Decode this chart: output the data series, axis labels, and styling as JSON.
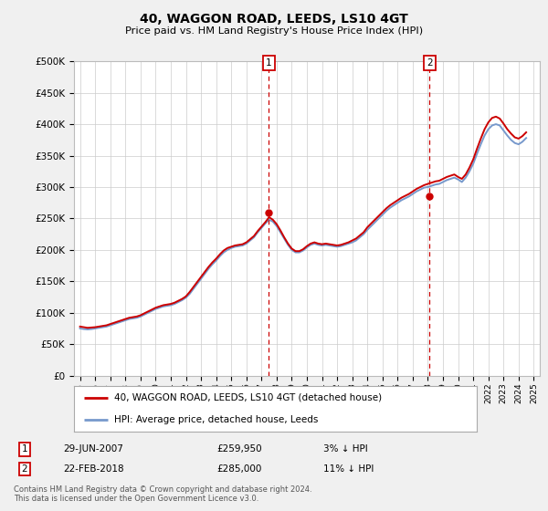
{
  "title": "40, WAGGON ROAD, LEEDS, LS10 4GT",
  "subtitle": "Price paid vs. HM Land Registry's House Price Index (HPI)",
  "ylabel_ticks": [
    "£0",
    "£50K",
    "£100K",
    "£150K",
    "£200K",
    "£250K",
    "£300K",
    "£350K",
    "£400K",
    "£450K",
    "£500K"
  ],
  "ytick_vals": [
    0,
    50000,
    100000,
    150000,
    200000,
    250000,
    300000,
    350000,
    400000,
    450000,
    500000
  ],
  "xlim_start": 1994.6,
  "xlim_end": 2025.4,
  "ylim": [
    0,
    500000
  ],
  "hpi_color": "#7799cc",
  "price_color": "#cc0000",
  "marker1_year": 2007.49,
  "marker2_year": 2018.12,
  "marker1_price": 259950,
  "marker2_price": 285000,
  "annotation1_label": "1",
  "annotation2_label": "2",
  "legend_label1": "40, WAGGON ROAD, LEEDS, LS10 4GT (detached house)",
  "legend_label2": "HPI: Average price, detached house, Leeds",
  "table_row1": [
    "1",
    "29-JUN-2007",
    "£259,950",
    "3% ↓ HPI"
  ],
  "table_row2": [
    "2",
    "22-FEB-2018",
    "£285,000",
    "11% ↓ HPI"
  ],
  "footer": "Contains HM Land Registry data © Crown copyright and database right 2024.\nThis data is licensed under the Open Government Licence v3.0.",
  "bg_color": "#f0f0f0",
  "plot_bg": "#ffffff",
  "hpi_data": {
    "years": [
      1995.0,
      1995.25,
      1995.5,
      1995.75,
      1996.0,
      1996.25,
      1996.5,
      1996.75,
      1997.0,
      1997.25,
      1997.5,
      1997.75,
      1998.0,
      1998.25,
      1998.5,
      1998.75,
      1999.0,
      1999.25,
      1999.5,
      1999.75,
      2000.0,
      2000.25,
      2000.5,
      2000.75,
      2001.0,
      2001.25,
      2001.5,
      2001.75,
      2002.0,
      2002.25,
      2002.5,
      2002.75,
      2003.0,
      2003.25,
      2003.5,
      2003.75,
      2004.0,
      2004.25,
      2004.5,
      2004.75,
      2005.0,
      2005.25,
      2005.5,
      2005.75,
      2006.0,
      2006.25,
      2006.5,
      2006.75,
      2007.0,
      2007.25,
      2007.5,
      2007.75,
      2008.0,
      2008.25,
      2008.5,
      2008.75,
      2009.0,
      2009.25,
      2009.5,
      2009.75,
      2010.0,
      2010.25,
      2010.5,
      2010.75,
      2011.0,
      2011.25,
      2011.5,
      2011.75,
      2012.0,
      2012.25,
      2012.5,
      2012.75,
      2013.0,
      2013.25,
      2013.5,
      2013.75,
      2014.0,
      2014.25,
      2014.5,
      2014.75,
      2015.0,
      2015.25,
      2015.5,
      2015.75,
      2016.0,
      2016.25,
      2016.5,
      2016.75,
      2017.0,
      2017.25,
      2017.5,
      2017.75,
      2018.0,
      2018.25,
      2018.5,
      2018.75,
      2019.0,
      2019.25,
      2019.5,
      2019.75,
      2020.0,
      2020.25,
      2020.5,
      2020.75,
      2021.0,
      2021.25,
      2021.5,
      2021.75,
      2022.0,
      2022.25,
      2022.5,
      2022.75,
      2023.0,
      2023.25,
      2023.5,
      2023.75,
      2024.0,
      2024.25,
      2024.5
    ],
    "values": [
      75000,
      74000,
      73500,
      74000,
      75000,
      76000,
      77000,
      78000,
      80000,
      82000,
      84000,
      86000,
      88000,
      90000,
      91000,
      92000,
      94000,
      97000,
      100000,
      103000,
      106000,
      108000,
      110000,
      111000,
      112000,
      114000,
      117000,
      120000,
      124000,
      130000,
      138000,
      146000,
      154000,
      162000,
      170000,
      177000,
      183000,
      190000,
      196000,
      200000,
      203000,
      205000,
      206000,
      207000,
      210000,
      215000,
      220000,
      228000,
      235000,
      242000,
      248000,
      245000,
      238000,
      228000,
      218000,
      208000,
      200000,
      196000,
      196000,
      199000,
      204000,
      208000,
      210000,
      208000,
      207000,
      208000,
      207000,
      206000,
      205000,
      206000,
      208000,
      210000,
      212000,
      215000,
      220000,
      225000,
      232000,
      238000,
      244000,
      250000,
      256000,
      262000,
      267000,
      271000,
      275000,
      279000,
      282000,
      285000,
      289000,
      293000,
      296000,
      299000,
      300000,
      302000,
      304000,
      305000,
      308000,
      311000,
      313000,
      315000,
      312000,
      308000,
      315000,
      325000,
      337000,
      353000,
      368000,
      382000,
      392000,
      398000,
      400000,
      398000,
      390000,
      382000,
      375000,
      370000,
      368000,
      372000,
      378000
    ]
  },
  "price_data": {
    "years": [
      1995.0,
      1995.25,
      1995.5,
      1995.75,
      1996.0,
      1996.25,
      1996.5,
      1996.75,
      1997.0,
      1997.25,
      1997.5,
      1997.75,
      1998.0,
      1998.25,
      1998.5,
      1998.75,
      1999.0,
      1999.25,
      1999.5,
      1999.75,
      2000.0,
      2000.25,
      2000.5,
      2000.75,
      2001.0,
      2001.25,
      2001.5,
      2001.75,
      2002.0,
      2002.25,
      2002.5,
      2002.75,
      2003.0,
      2003.25,
      2003.5,
      2003.75,
      2004.0,
      2004.25,
      2004.5,
      2004.75,
      2005.0,
      2005.25,
      2005.5,
      2005.75,
      2006.0,
      2006.25,
      2006.5,
      2006.75,
      2007.0,
      2007.25,
      2007.5,
      2007.75,
      2008.0,
      2008.25,
      2008.5,
      2008.75,
      2009.0,
      2009.25,
      2009.5,
      2009.75,
      2010.0,
      2010.25,
      2010.5,
      2010.75,
      2011.0,
      2011.25,
      2011.5,
      2011.75,
      2012.0,
      2012.25,
      2012.5,
      2012.75,
      2013.0,
      2013.25,
      2013.5,
      2013.75,
      2014.0,
      2014.25,
      2014.5,
      2014.75,
      2015.0,
      2015.25,
      2015.5,
      2015.75,
      2016.0,
      2016.25,
      2016.5,
      2016.75,
      2017.0,
      2017.25,
      2017.5,
      2017.75,
      2018.0,
      2018.25,
      2018.5,
      2018.75,
      2019.0,
      2019.25,
      2019.5,
      2019.75,
      2020.0,
      2020.25,
      2020.5,
      2020.75,
      2021.0,
      2021.25,
      2021.5,
      2021.75,
      2022.0,
      2022.25,
      2022.5,
      2022.75,
      2023.0,
      2023.25,
      2023.5,
      2023.75,
      2024.0,
      2024.25,
      2024.5
    ],
    "values": [
      78000,
      77000,
      76000,
      76500,
      77000,
      78000,
      79000,
      80000,
      82000,
      84000,
      86000,
      88000,
      90000,
      92000,
      93000,
      94000,
      96000,
      99000,
      102000,
      105000,
      108000,
      110000,
      112000,
      113000,
      114000,
      116000,
      119000,
      122000,
      126000,
      133000,
      141000,
      149000,
      157000,
      165000,
      173000,
      180000,
      186000,
      193000,
      199000,
      203000,
      205000,
      207000,
      208000,
      209000,
      212000,
      217000,
      222000,
      230000,
      237000,
      244000,
      252000,
      248000,
      241000,
      231000,
      220000,
      210000,
      202000,
      198000,
      198000,
      201000,
      206000,
      210000,
      212000,
      210000,
      209000,
      210000,
      209000,
      208000,
      207000,
      208000,
      210000,
      212000,
      215000,
      218000,
      223000,
      228000,
      236000,
      242000,
      248000,
      254000,
      260000,
      266000,
      271000,
      275000,
      279000,
      283000,
      286000,
      289000,
      293000,
      297000,
      300000,
      303000,
      305000,
      307000,
      309000,
      310000,
      313000,
      316000,
      318000,
      320000,
      316000,
      313000,
      320000,
      331000,
      344000,
      361000,
      377000,
      392000,
      403000,
      410000,
      412000,
      409000,
      401000,
      392000,
      385000,
      379000,
      377000,
      381000,
      387000
    ]
  }
}
